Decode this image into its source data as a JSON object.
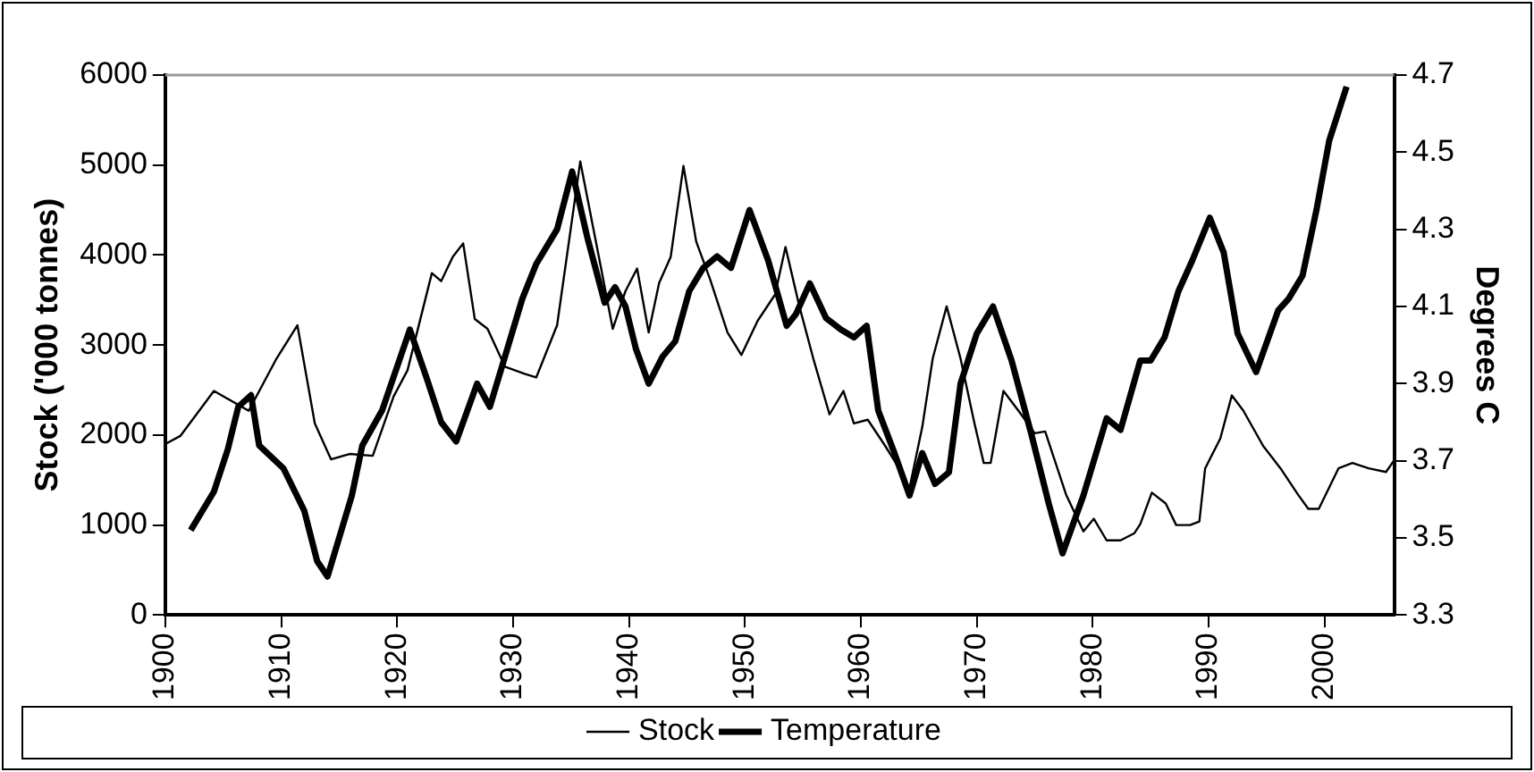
{
  "chart_data": {
    "type": "line",
    "ylabel": "Stock ('000 tonnes)",
    "y2label": "Degrees C",
    "xlim": [
      1900,
      2006
    ],
    "xticks": [
      1900,
      1910,
      1920,
      1930,
      1940,
      1950,
      1960,
      1970,
      1980,
      1990,
      2000
    ],
    "ylim": [
      0,
      6000
    ],
    "yticks": [
      0,
      1000,
      2000,
      3000,
      4000,
      5000,
      6000
    ],
    "y2lim": [
      3.3,
      4.7
    ],
    "y2ticks": [
      3.3,
      3.5,
      3.7,
      3.9,
      4.1,
      4.3,
      4.5,
      4.7
    ],
    "grid": false,
    "legend": "bottom",
    "marker": "none",
    "line_style": "solid",
    "series": [
      {
        "name": "Stock",
        "color": "#000000",
        "x": [
          1900,
          1901.3,
          1904.2,
          1907.2,
          1909.6,
          1911.4,
          1912.9,
          1914.3,
          1915.9,
          1917.9,
          1919.7,
          1920.9,
          1923,
          1923.8,
          1924.8,
          1925.7,
          1926.7,
          1927.8,
          1929.3,
          1931,
          1932,
          1933.8,
          1935.8,
          1937.6,
          1938.6,
          1939.7,
          1940.7,
          1941.7,
          1942.6,
          1943.6,
          1944.7,
          1945.8,
          1947,
          1948.5,
          1949.7,
          1951.1,
          1952.6,
          1953.5,
          1954.7,
          1955.9,
          1957.3,
          1958.5,
          1959.4,
          1960.6,
          1962.1,
          1963.3,
          1964.1,
          1965.3,
          1966.2,
          1967.4,
          1968.6,
          1969.8,
          1970.6,
          1971.2,
          1972.3,
          1973.6,
          1975,
          1975.9,
          1977.7,
          1979.2,
          1980.1,
          1981.2,
          1982.4,
          1983.6,
          1984.1,
          1985.1,
          1986.3,
          1987.2,
          1988.4,
          1989.2,
          1989.7,
          1991,
          1992,
          1993,
          1994.7,
          1996.2,
          1997.7,
          1998.6,
          1999.5,
          2001.2,
          2002.4,
          2003.8,
          2005.3,
          2006
        ],
        "values": [
          1900,
          1990,
          2490,
          2270,
          2850,
          3220,
          2130,
          1730,
          1790,
          1770,
          2430,
          2720,
          3800,
          3710,
          3980,
          4130,
          3290,
          3180,
          2760,
          2680,
          2640,
          3220,
          5040,
          3850,
          3180,
          3600,
          3850,
          3140,
          3690,
          3980,
          4990,
          4150,
          3730,
          3140,
          2890,
          3270,
          3560,
          4090,
          3430,
          2850,
          2230,
          2490,
          2130,
          2170,
          1880,
          1630,
          1350,
          2090,
          2850,
          3430,
          2850,
          2130,
          1690,
          1690,
          2490,
          2270,
          2020,
          2040,
          1340,
          930,
          1070,
          830,
          830,
          910,
          1010,
          1360,
          1240,
          1000,
          1000,
          1040,
          1630,
          1960,
          2440,
          2270,
          1880,
          1630,
          1340,
          1180,
          1180,
          1630,
          1690,
          1630,
          1590,
          1720
        ]
      },
      {
        "name": "Temperature",
        "color": "#000000",
        "axis": "y2",
        "x": [
          1902.2,
          1903.4,
          1904.2,
          1905.4,
          1906.3,
          1907.4,
          1908.1,
          1910.2,
          1912,
          1913.1,
          1914,
          1916.1,
          1917,
          1918.7,
          1921.1,
          1922.6,
          1923.8,
          1925.1,
          1926.9,
          1928,
          1929.3,
          1930.8,
          1932,
          1933.8,
          1935.1,
          1936.4,
          1937.9,
          1938.8,
          1939.7,
          1940.6,
          1941.7,
          1942.9,
          1944,
          1945.2,
          1946.4,
          1947.6,
          1948.8,
          1950.4,
          1952,
          1953.6,
          1954.4,
          1955.6,
          1957,
          1958.3,
          1959.4,
          1960.5,
          1961.5,
          1962.9,
          1964.2,
          1965.3,
          1966.4,
          1967.6,
          1968.6,
          1970,
          1971.4,
          1973,
          1974.7,
          1976.2,
          1977.4,
          1979.2,
          1981.2,
          1982.4,
          1984.1,
          1985,
          1986.2,
          1987.4,
          1988.6,
          1990.1,
          1991.3,
          1992.5,
          1994.1,
          1996,
          1996.9,
          1998.1,
          1999.3,
          2000.4,
          2001.9
        ],
        "values": [
          3.52,
          3.58,
          3.62,
          3.73,
          3.84,
          3.87,
          3.74,
          3.68,
          3.57,
          3.44,
          3.4,
          3.61,
          3.74,
          3.83,
          4.04,
          3.91,
          3.8,
          3.75,
          3.9,
          3.84,
          3.97,
          4.12,
          4.21,
          4.3,
          4.45,
          4.28,
          4.11,
          4.15,
          4.1,
          3.99,
          3.9,
          3.97,
          4.01,
          4.14,
          4.2,
          4.23,
          4.2,
          4.35,
          4.22,
          4.05,
          4.08,
          4.16,
          4.07,
          4.04,
          4.02,
          4.05,
          3.83,
          3.72,
          3.61,
          3.72,
          3.64,
          3.67,
          3.9,
          4.03,
          4.1,
          3.96,
          3.77,
          3.59,
          3.46,
          3.61,
          3.81,
          3.78,
          3.96,
          3.96,
          4.02,
          4.14,
          4.22,
          4.33,
          4.24,
          4.03,
          3.93,
          4.09,
          4.12,
          4.18,
          4.35,
          4.53,
          4.67
        ]
      }
    ]
  }
}
